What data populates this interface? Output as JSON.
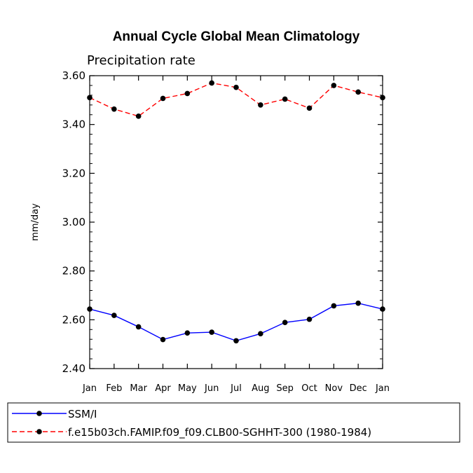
{
  "chart_data": {
    "type": "line",
    "title": "Annual Cycle Global Mean Climatology",
    "subtitle": "Precipitation rate",
    "ylabel": "mm/day",
    "xlabel": "",
    "ylim": [
      2.4,
      3.6
    ],
    "yticks": [
      "2.40",
      "2.60",
      "2.80",
      "3.00",
      "3.20",
      "3.40",
      "3.60"
    ],
    "yticks_values": [
      2.4,
      2.6,
      2.8,
      3.0,
      3.2,
      3.4,
      3.6
    ],
    "categories": [
      "Jan",
      "Feb",
      "Mar",
      "Apr",
      "May",
      "Jun",
      "Jul",
      "Aug",
      "Sep",
      "Oct",
      "Nov",
      "Dec",
      "Jan"
    ],
    "series": [
      {
        "name": "SSM/I",
        "color": "#0000ff",
        "dash": "solid",
        "values": [
          2.644,
          2.618,
          2.571,
          2.519,
          2.546,
          2.549,
          2.514,
          2.543,
          2.589,
          2.602,
          2.657,
          2.668,
          2.644
        ]
      },
      {
        "name": "f.e15b03ch.FAMIP.f09_f09.CLB00-SGHHT-300 (1980-1984)",
        "color": "#ff0000",
        "dash": "dashed",
        "values": [
          3.51,
          3.463,
          3.434,
          3.507,
          3.527,
          3.57,
          3.552,
          3.48,
          3.504,
          3.467,
          3.56,
          3.533,
          3.51
        ]
      }
    ],
    "legend_position": "bottom-left"
  }
}
